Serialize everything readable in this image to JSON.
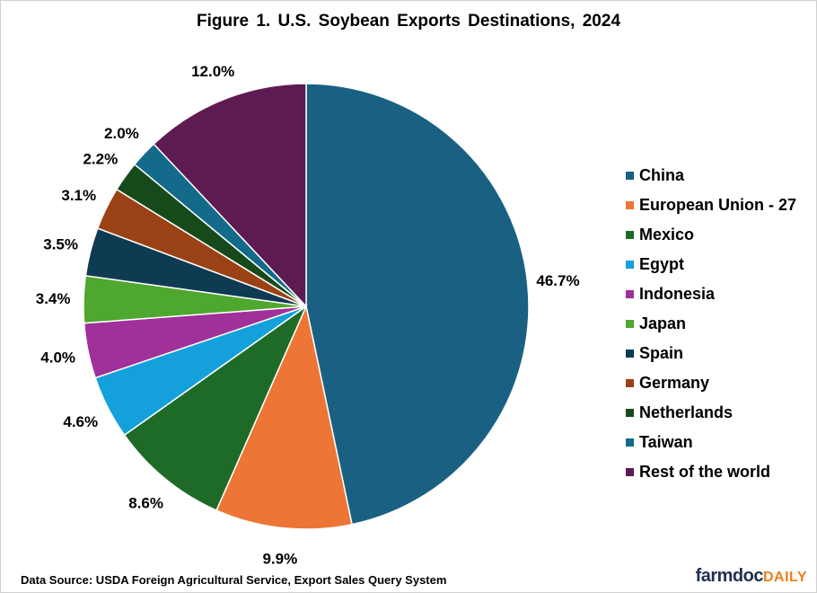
{
  "chart_data": {
    "type": "pie",
    "title": "Figure  1. U.S. Soybean Exports Destinations,  2024",
    "legend_position": "right",
    "start": "top, clockwise",
    "slices": [
      {
        "name": "China",
        "value": 46.7,
        "label": "46.7%",
        "color": "#1A6082"
      },
      {
        "name": "European Union - 27",
        "value": 9.9,
        "label": "9.9%",
        "color": "#ED7535"
      },
      {
        "name": "Mexico",
        "value": 8.6,
        "label": "8.6%",
        "color": "#1E6B28"
      },
      {
        "name": "Egypt",
        "value": 4.6,
        "label": "4.6%",
        "color": "#14A0DA"
      },
      {
        "name": "Indonesia",
        "value": 4.0,
        "label": "4.0%",
        "color": "#A0309A"
      },
      {
        "name": "Japan",
        "value": 3.4,
        "label": "3.4%",
        "color": "#4EA72E"
      },
      {
        "name": "Spain",
        "value": 3.5,
        "label": "3.5%",
        "color": "#0F3B52"
      },
      {
        "name": "Germany",
        "value": 3.1,
        "label": "3.1%",
        "color": "#9A4215"
      },
      {
        "name": "Netherlands",
        "value": 2.2,
        "label": "2.2%",
        "color": "#174A1B"
      },
      {
        "name": "Taiwan",
        "value": 2.0,
        "label": "2.0%",
        "color": "#136A8A"
      },
      {
        "name": "Rest of the world",
        "value": 12.0,
        "label": "12.0%",
        "color": "#5E1B52"
      }
    ]
  },
  "source": "Data Source: USDA Foreign Agricultural Service, Export Sales Query System",
  "logo": {
    "part1": "farmdoc",
    "part2": "DAILY"
  }
}
